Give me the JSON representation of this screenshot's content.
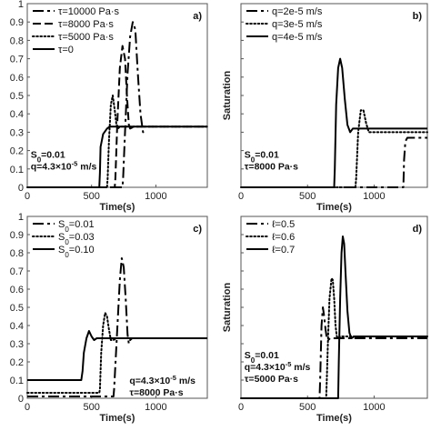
{
  "chart_data": [
    {
      "panel": "a)",
      "type": "line",
      "xlabel": "Time(s)",
      "ylabel": "",
      "xlim": [
        0,
        1400
      ],
      "ylim": [
        0,
        1.0
      ],
      "xticks": [
        "0",
        "500",
        "1000"
      ],
      "yticks": [
        "0",
        "0.1",
        "0.2",
        "0.3",
        "0.4",
        "0.5",
        "0.6",
        "0.7",
        "0.8",
        "0.9",
        "1"
      ],
      "legend_position": "top-left",
      "annotations": [
        {
          "lines": [
            {
              "text": "S",
              "sub": "0",
              "rest": "=0.01"
            },
            {
              "text": "q=4.3×10",
              "sup": "-5",
              "rest": " m/s"
            }
          ],
          "at": [
            12,
            0.16
          ]
        }
      ],
      "series": [
        {
          "name": "τ=10000 Pa·s",
          "style": "longdash",
          "x": [
            0,
            740,
            745,
            760,
            780,
            800,
            820,
            840,
            860,
            880,
            900,
            920
          ],
          "y": [
            0,
            0,
            0.05,
            0.3,
            0.62,
            0.82,
            0.9,
            0.86,
            0.62,
            0.4,
            0.3,
            0.32
          ]
        },
        {
          "name": "τ=8000 Pa·s",
          "style": "dash",
          "x": [
            0,
            680,
            685,
            700,
            720,
            740,
            760,
            775,
            790,
            800,
            830,
            1400
          ],
          "y": [
            0,
            0,
            0.05,
            0.35,
            0.65,
            0.77,
            0.7,
            0.5,
            0.34,
            0.32,
            0.33,
            0.33
          ]
        },
        {
          "name": "τ=5000 Pa·s",
          "style": "dot",
          "x": [
            0,
            620,
            625,
            635,
            650,
            665,
            680,
            695,
            705,
            720,
            1400
          ],
          "y": [
            0,
            0,
            0.05,
            0.25,
            0.45,
            0.5,
            0.42,
            0.33,
            0.32,
            0.33,
            0.33
          ]
        },
        {
          "name": "τ=0",
          "style": "solid",
          "x": [
            0,
            560,
            565,
            570,
            590,
            620,
            640,
            660,
            1400
          ],
          "y": [
            0,
            0,
            0.08,
            0.22,
            0.29,
            0.32,
            0.33,
            0.33,
            0.33
          ]
        }
      ]
    },
    {
      "panel": "b)",
      "type": "line",
      "xlabel": "Time(s)",
      "ylabel": "Saturation",
      "xlim": [
        0,
        1400
      ],
      "ylim": [
        0,
        1.0
      ],
      "xticks": [
        "0",
        "500",
        "1000"
      ],
      "yticks": [],
      "legend_position": "top-left",
      "annotations": [
        {
          "lines": [
            {
              "text": "S",
              "sub": "0",
              "rest": "=0.01"
            },
            {
              "text": "τ=8000 Pa·s"
            }
          ],
          "at": [
            12,
            0.16
          ]
        }
      ],
      "series": [
        {
          "name": "q=2e-5 m/s",
          "style": "longdash",
          "x": [
            0,
            1220,
            1225,
            1235,
            1250,
            1400
          ],
          "y": [
            0,
            0,
            0.15,
            0.25,
            0.27,
            0.27
          ]
        },
        {
          "name": "q=3e-5 m/s",
          "style": "dot",
          "x": [
            0,
            860,
            865,
            880,
            900,
            920,
            940,
            960,
            980,
            1400
          ],
          "y": [
            0,
            0,
            0.05,
            0.3,
            0.42,
            0.42,
            0.35,
            0.3,
            0.3,
            0.3
          ]
        },
        {
          "name": "q=4e-5 m/s",
          "style": "solid",
          "x": [
            0,
            700,
            705,
            715,
            730,
            745,
            760,
            780,
            800,
            820,
            840,
            860,
            1400
          ],
          "y": [
            0,
            0,
            0.1,
            0.45,
            0.65,
            0.7,
            0.65,
            0.48,
            0.34,
            0.3,
            0.32,
            0.32,
            0.32
          ]
        }
      ]
    },
    {
      "panel": "c)",
      "type": "line",
      "xlabel": "Time(s)",
      "ylabel": "",
      "xlim": [
        0,
        1400
      ],
      "ylim": [
        0,
        1.0
      ],
      "xticks": [
        "0",
        "500",
        "1000"
      ],
      "yticks": [
        "0",
        "0.1",
        "0.2",
        "0.3",
        "0.4",
        "0.5",
        "0.6",
        "0.7",
        "0.8",
        "0.9",
        "1"
      ],
      "legend_position": "top-left",
      "annotations": [
        {
          "lines": [
            {
              "text": "q=4.3×10",
              "sup": "-5",
              "rest": " m/s"
            },
            {
              "text": "τ=8000 Pa·s"
            }
          ],
          "at": [
            780,
            0.08
          ]
        }
      ],
      "series": [
        {
          "name": "S0=0.01",
          "label_main": "S",
          "label_sub": "0",
          "label_rest": "=0.01",
          "style": "longdash",
          "x": [
            0,
            670,
            675,
            690,
            705,
            720,
            735,
            750,
            765,
            780,
            790,
            800,
            815
          ],
          "y": [
            0.01,
            0.01,
            0.05,
            0.25,
            0.45,
            0.65,
            0.77,
            0.72,
            0.55,
            0.35,
            0.3,
            0.32,
            0.33
          ]
        },
        {
          "name": "S0=0.03",
          "label_main": "S",
          "label_sub": "0",
          "label_rest": "=0.03",
          "style": "dot",
          "x": [
            0,
            560,
            565,
            575,
            590,
            605,
            620,
            635,
            650,
            670,
            690
          ],
          "y": [
            0.03,
            0.03,
            0.05,
            0.25,
            0.4,
            0.47,
            0.45,
            0.38,
            0.32,
            0.32,
            0.33
          ]
        },
        {
          "name": "S0=0.10",
          "label_main": "S",
          "label_sub": "0",
          "label_rest": "=0.10",
          "style": "solid",
          "x": [
            0,
            420,
            430,
            440,
            460,
            480,
            500,
            520,
            540,
            560,
            1400
          ],
          "y": [
            0.1,
            0.1,
            0.15,
            0.25,
            0.33,
            0.37,
            0.34,
            0.32,
            0.33,
            0.33,
            0.33
          ]
        }
      ]
    },
    {
      "panel": "d)",
      "type": "line",
      "xlabel": "Time(s)",
      "ylabel": "Saturation",
      "xlim": [
        0,
        1400
      ],
      "ylim": [
        0,
        1.0
      ],
      "xticks": [
        "0",
        "500",
        "1000"
      ],
      "yticks": [],
      "legend_position": "top-left",
      "annotations": [
        {
          "lines": [
            {
              "text": "S",
              "sub": "0",
              "rest": "=0.01"
            },
            {
              "text": "q=4.3×10",
              "sup": "-5",
              "rest": " m/s"
            },
            {
              "text": "τ=5000 Pa·s"
            }
          ],
          "at": [
            12,
            0.22
          ]
        }
      ],
      "series": [
        {
          "name": "ℓ=0.5",
          "style": "longdash",
          "x": [
            0,
            590,
            595,
            605,
            615,
            625,
            635,
            645,
            655,
            670,
            1400
          ],
          "y": [
            0,
            0,
            0.1,
            0.4,
            0.5,
            0.45,
            0.38,
            0.33,
            0.32,
            0.33,
            0.33
          ]
        },
        {
          "name": "ℓ=0.6",
          "style": "dot",
          "x": [
            0,
            640,
            645,
            655,
            665,
            680,
            690,
            700,
            710,
            720,
            730,
            745,
            1400
          ],
          "y": [
            0,
            0,
            0.1,
            0.35,
            0.55,
            0.66,
            0.65,
            0.55,
            0.4,
            0.34,
            0.33,
            0.34,
            0.34
          ]
        },
        {
          "name": "ℓ=0.7",
          "style": "solid",
          "x": [
            0,
            730,
            735,
            745,
            755,
            765,
            775,
            785,
            800,
            815,
            830,
            850,
            1400
          ],
          "y": [
            0,
            0,
            0.2,
            0.55,
            0.8,
            0.89,
            0.85,
            0.7,
            0.48,
            0.36,
            0.33,
            0.34,
            0.34
          ]
        }
      ]
    }
  ]
}
